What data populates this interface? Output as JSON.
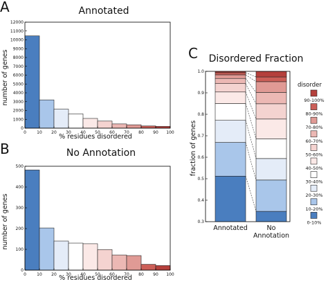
{
  "colors": {
    "bins": [
      "#4a7ebf",
      "#a9c6ea",
      "#e4ecf8",
      "#ffffff",
      "#fbe9e7",
      "#f4d3d0",
      "#ecb8b4",
      "#e09a95",
      "#cc5f58",
      "#b5403c"
    ]
  },
  "chart_data": [
    {
      "panel": "A",
      "type": "bar",
      "title": "Annotated",
      "xlabel": "% residues disordered",
      "ylabel": "number of genes",
      "categories": [
        "0-10",
        "10-20",
        "20-30",
        "30-40",
        "40-50",
        "50-60",
        "60-70",
        "70-80",
        "80-90",
        "90-100"
      ],
      "values": [
        10450,
        3200,
        2150,
        1620,
        1100,
        800,
        480,
        380,
        250,
        200
      ],
      "xlim": [
        0,
        100
      ],
      "ylim": [
        0,
        12000
      ],
      "xticks": [
        "0",
        "10",
        "20",
        "30",
        "40",
        "50",
        "60",
        "70",
        "80",
        "90",
        "100"
      ],
      "yticks": [
        "0",
        "1000",
        "2000",
        "3000",
        "4000",
        "5000",
        "6000",
        "7000",
        "8000",
        "9000",
        "10000",
        "11000",
        "12000"
      ]
    },
    {
      "panel": "B",
      "type": "bar",
      "title": "No Annotation",
      "xlabel": "% residues disordered",
      "ylabel": "number of genes",
      "categories": [
        "0-10",
        "10-20",
        "20-30",
        "30-40",
        "40-50",
        "50-60",
        "60-70",
        "70-80",
        "80-90",
        "90-100"
      ],
      "values": [
        482,
        203,
        140,
        130,
        127,
        99,
        73,
        70,
        28,
        22
      ],
      "xlim": [
        0,
        100
      ],
      "ylim": [
        0,
        500
      ],
      "xticks": [
        "0",
        "10",
        "20",
        "30",
        "40",
        "50",
        "60",
        "70",
        "80",
        "90",
        "100"
      ],
      "yticks": [
        "0",
        "100",
        "200",
        "300",
        "400",
        "500"
      ]
    },
    {
      "panel": "C",
      "type": "bar",
      "stacked": true,
      "title": "Disordered Fraction",
      "ylabel": "fraction of genes",
      "categories": [
        "Annotated",
        "No\nAnnotation"
      ],
      "ylim": [
        0.3,
        1.0
      ],
      "yticks": [
        "0.3",
        "0.4",
        "0.5",
        "0.6",
        "0.7",
        "0.8",
        "0.9",
        "1.0"
      ],
      "legend_title": "disorder",
      "legend_position": "right",
      "series": [
        {
          "name": "0-10%",
          "values": [
            0.512,
            0.348
          ]
        },
        {
          "name": "10-20%",
          "values": [
            0.157,
            0.146
          ]
        },
        {
          "name": "20-30%",
          "values": [
            0.103,
            0.1
          ]
        },
        {
          "name": "30-40%",
          "values": [
            0.078,
            0.092
          ]
        },
        {
          "name": "40-50%",
          "values": [
            0.054,
            0.092
          ]
        },
        {
          "name": "50-60%",
          "values": [
            0.039,
            0.071
          ]
        },
        {
          "name": "60-70%",
          "values": [
            0.024,
            0.053
          ]
        },
        {
          "name": "70-80%",
          "values": [
            0.017,
            0.05
          ]
        },
        {
          "name": "80-90%",
          "values": [
            0.01,
            0.022
          ]
        },
        {
          "name": "90-100%",
          "values": [
            0.006,
            0.026
          ]
        }
      ]
    }
  ]
}
